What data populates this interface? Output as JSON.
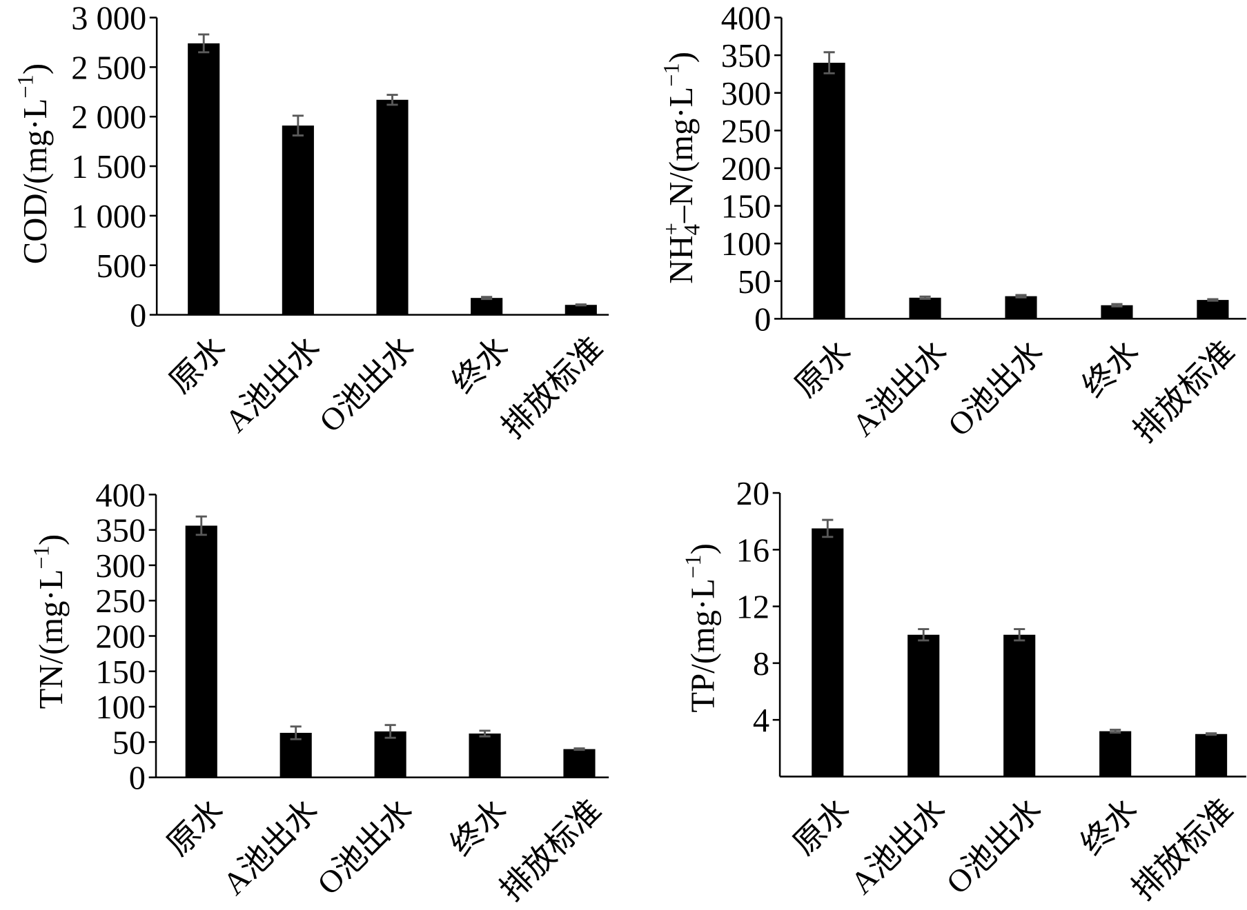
{
  "chart_data": [
    {
      "type": "bar",
      "categories": [
        "原水",
        "A池出水",
        "O池出水",
        "终水",
        "排放标准"
      ],
      "values": [
        2740,
        1910,
        2170,
        170,
        100
      ],
      "errors": [
        90,
        100,
        50,
        10,
        5
      ],
      "ylabel": [
        {
          "text": "COD/(mg·L"
        },
        {
          "sup": "−1"
        },
        {
          "text": ")"
        }
      ],
      "ylim": [
        0,
        3000
      ],
      "yticks": [
        0,
        500,
        1000,
        1500,
        2000,
        2500,
        3000
      ],
      "ytick_labels": [
        "0",
        "500",
        "1 000",
        "1 500",
        "2 000",
        "2 500",
        "3 000"
      ],
      "grid": false,
      "bar_color": "#000000",
      "error_color": "#595959"
    },
    {
      "type": "bar",
      "categories": [
        "原水",
        "A池出水",
        "O池出水",
        "终水",
        "排放标准"
      ],
      "values": [
        340,
        28,
        30,
        18,
        25
      ],
      "errors": [
        14,
        1.5,
        1.5,
        1.5,
        1
      ],
      "ylabel": [
        {
          "text": "NH"
        },
        {
          "sub": "4"
        },
        {
          "sup": "+"
        },
        {
          "text": "–N/(mg·L"
        },
        {
          "sup": "−1"
        },
        {
          "text": ")"
        }
      ],
      "ylim": [
        0,
        400
      ],
      "yticks": [
        0,
        50,
        100,
        150,
        200,
        250,
        300,
        350,
        400
      ],
      "ytick_labels": [
        "0",
        "50",
        "100",
        "150",
        "200",
        "250",
        "300",
        "350",
        "400"
      ],
      "grid": false,
      "bar_color": "#000000",
      "error_color": "#595959"
    },
    {
      "type": "bar",
      "categories": [
        "原水",
        "A池出水",
        "O池出水",
        "终水",
        "排放标准"
      ],
      "values": [
        356,
        63,
        65,
        62,
        40
      ],
      "errors": [
        13,
        9,
        9,
        4,
        1
      ],
      "ylabel": [
        {
          "text": "TN/(mg·L"
        },
        {
          "sup": "−1"
        },
        {
          "text": ")"
        }
      ],
      "ylim": [
        0,
        400
      ],
      "yticks": [
        0,
        50,
        100,
        150,
        200,
        250,
        300,
        350,
        400
      ],
      "ytick_labels": [
        "0",
        "50",
        "100",
        "150",
        "200",
        "250",
        "300",
        "350",
        "400"
      ],
      "grid": false,
      "bar_color": "#000000",
      "error_color": "#595959"
    },
    {
      "type": "bar",
      "categories": [
        "原水",
        "A池出水",
        "O池出水",
        "终水",
        "排放标准"
      ],
      "values": [
        17.5,
        10,
        10,
        3.2,
        3.0
      ],
      "errors": [
        0.6,
        0.4,
        0.4,
        0.1,
        0.05
      ],
      "ylabel": [
        {
          "text": "TP/(mg·L"
        },
        {
          "sup": "−1"
        },
        {
          "text": ")"
        }
      ],
      "ylim": [
        0,
        20
      ],
      "yticks": [
        4,
        8,
        12,
        16,
        20
      ],
      "ytick_labels": [
        "4",
        "8",
        "12",
        "16",
        "20"
      ],
      "grid": false,
      "bar_color": "#000000",
      "error_color": "#595959"
    }
  ]
}
